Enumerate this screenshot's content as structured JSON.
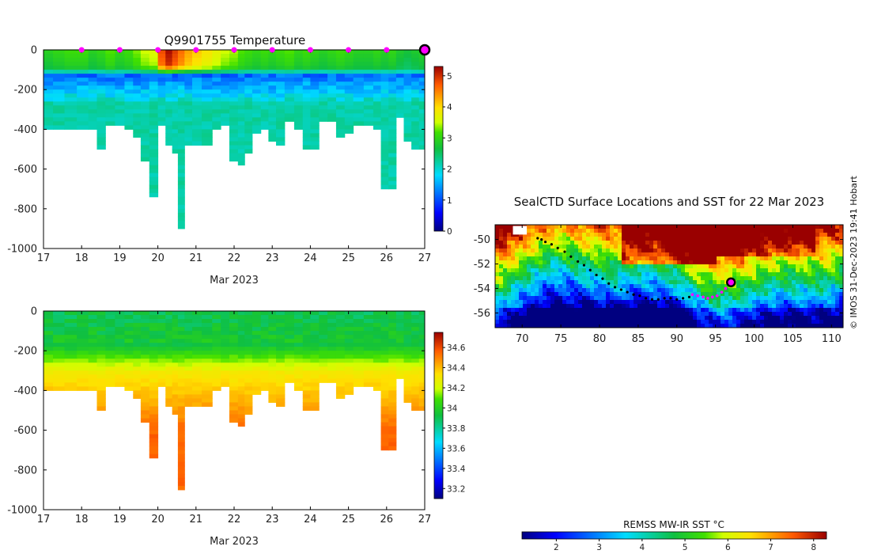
{
  "credit": "© IMOS 31-Dec-2023 19:41 Hobart",
  "colors": {
    "profile_marker": "#ff00ff",
    "track_marker": "#000000",
    "axis": "#000000"
  },
  "chart_data": [
    {
      "id": "temperature",
      "type": "heatmap",
      "title": "Q9901755  Temperature",
      "xlabel": "Mar 2023",
      "ylabel": "",
      "xlim": [
        17,
        27
      ],
      "ylim": [
        -1000,
        0
      ],
      "xticks": [
        "17",
        "18",
        "19",
        "20",
        "21",
        "22",
        "23",
        "24",
        "25",
        "26",
        "27"
      ],
      "yticks": [
        "0",
        "-200",
        "-400",
        "-600",
        "-800",
        "-1000"
      ],
      "colorbar": {
        "min": 0,
        "max": 5.3,
        "ticks": [
          "0",
          "1",
          "2",
          "3",
          "4",
          "5"
        ]
      },
      "surface_markers_day": [
        18,
        19,
        20,
        21,
        22,
        23,
        24,
        25,
        26
      ],
      "latest_profile_day": 27,
      "profile_days": [
        17.1,
        17.4,
        17.7,
        18.05,
        18.3,
        18.5,
        18.75,
        19.0,
        19.25,
        19.45,
        19.65,
        19.9,
        20.1,
        20.3,
        20.45,
        20.6,
        20.8,
        21.0,
        21.3,
        21.55,
        21.75,
        22.0,
        22.2,
        22.35,
        22.6,
        22.8,
        23.0,
        23.2,
        23.45,
        23.7,
        23.9,
        24.1,
        24.35,
        24.55,
        24.8,
        25.0,
        25.25,
        25.55,
        25.75,
        25.95,
        26.15,
        26.35,
        26.55,
        26.75,
        26.95
      ],
      "profile_max_depth": [
        400,
        400,
        400,
        400,
        400,
        500,
        370,
        370,
        400,
        440,
        550,
        740,
        380,
        480,
        520,
        890,
        470,
        470,
        470,
        400,
        380,
        550,
        570,
        510,
        420,
        400,
        460,
        480,
        360,
        400,
        500,
        490,
        360,
        360,
        440,
        420,
        380,
        380,
        400,
        700,
        700,
        330,
        460,
        490,
        490
      ],
      "profile_surface_temp": [
        2.9,
        3.0,
        3.1,
        3.1,
        2.9,
        3.0,
        3.2,
        3.0,
        3.1,
        3.3,
        3.5,
        3.6,
        4.8,
        5.2,
        4.9,
        4.6,
        4.3,
        4.1,
        3.9,
        3.7,
        3.5,
        3.4,
        3.2,
        3.1,
        3.0,
        3.1,
        3.0,
        3.1,
        3.2,
        3.0,
        3.1,
        3.0,
        2.9,
        3.0,
        3.1,
        3.0,
        2.9,
        2.9,
        3.0,
        2.9,
        3.0,
        2.8,
        2.7,
        2.8,
        2.9
      ],
      "deep_value": 2.2
    },
    {
      "id": "salinity",
      "type": "heatmap",
      "title": "",
      "xlabel": "Mar 2023",
      "ylabel": "",
      "xlim": [
        17,
        27
      ],
      "ylim": [
        -1000,
        0
      ],
      "xticks": [
        "17",
        "18",
        "19",
        "20",
        "21",
        "22",
        "23",
        "24",
        "25",
        "26",
        "27"
      ],
      "yticks": [
        "0",
        "-200",
        "-400",
        "-600",
        "-800",
        "-1000"
      ],
      "colorbar": {
        "min": 33.1,
        "max": 34.75,
        "ticks": [
          "33.2",
          "33.4",
          "33.6",
          "33.8",
          "34",
          "34.2",
          "34.4",
          "34.6"
        ]
      },
      "surface_value": 33.9,
      "thermocline_value": 34.3,
      "deep_value": 34.55
    },
    {
      "id": "sst_map",
      "type": "heatmap",
      "title": "SealCTD Surface Locations and SST for 22 Mar 2023",
      "xlabel": "",
      "ylabel": "",
      "xlim": [
        66.5,
        111.5
      ],
      "ylim": [
        -57.2,
        -48.8
      ],
      "xticks": [
        "70",
        "75",
        "80",
        "85",
        "90",
        "95",
        "100",
        "105",
        "110"
      ],
      "yticks": [
        "-50",
        "-52",
        "-54",
        "-56"
      ],
      "colorbar": {
        "label": "REMSS MW-IR SST °C",
        "min": 1.2,
        "max": 8.3,
        "ticks": [
          "2",
          "3",
          "4",
          "5",
          "6",
          "7",
          "8"
        ]
      },
      "track_lon": [
        72.0,
        72.5,
        73.0,
        73.8,
        74.6,
        75.5,
        76.3,
        77.2,
        78.0,
        78.8,
        79.6,
        80.4,
        81.2,
        82.0,
        82.8,
        83.6,
        84.4,
        85.2,
        86.0,
        86.8,
        87.6,
        88.4,
        89.2,
        90.0,
        90.8,
        91.6
      ],
      "track_lat": [
        -49.9,
        -50.0,
        -50.2,
        -50.4,
        -50.7,
        -51.0,
        -51.4,
        -51.8,
        -52.1,
        -52.5,
        -52.9,
        -53.2,
        -53.6,
        -53.9,
        -54.1,
        -54.3,
        -54.5,
        -54.6,
        -54.8,
        -54.9,
        -54.9,
        -54.8,
        -54.8,
        -54.9,
        -54.8,
        -54.7
      ],
      "recent_lon": [
        92.0,
        92.7,
        93.4,
        94.0,
        94.6,
        95.2,
        95.8,
        96.3
      ],
      "recent_lat": [
        -54.5,
        -54.6,
        -54.7,
        -54.8,
        -54.7,
        -54.6,
        -54.3,
        -54.0
      ],
      "latest_position": {
        "lon": 97.0,
        "lat": -53.5
      }
    }
  ]
}
